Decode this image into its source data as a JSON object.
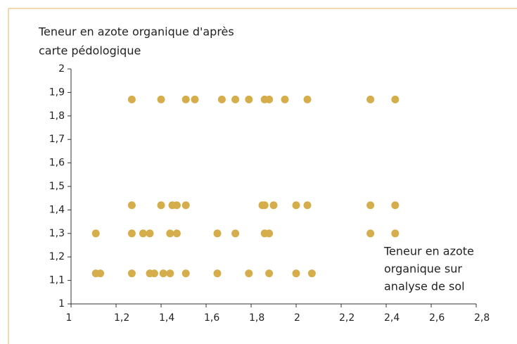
{
  "chart_data": {
    "type": "scatter",
    "ylabel": [
      "Teneur en azote organique d'après",
      "carte pédologique"
    ],
    "xlabel": [
      "Teneur en azote",
      "organique sur",
      "analyse de sol"
    ],
    "color": "#d5ad4b",
    "x": [
      1.27,
      1.4,
      1.51,
      1.55,
      1.67,
      1.73,
      1.79,
      1.86,
      1.88,
      1.95,
      2.05,
      2.33,
      2.44,
      1.27,
      1.4,
      1.45,
      1.47,
      1.51,
      1.85,
      1.86,
      1.9,
      2.0,
      2.05,
      2.33,
      2.44,
      1.11,
      1.27,
      1.32,
      1.35,
      1.44,
      1.47,
      1.65,
      1.73,
      1.86,
      1.88,
      2.33,
      2.44,
      1.11,
      1.13,
      1.27,
      1.35,
      1.37,
      1.41,
      1.44,
      1.51,
      1.65,
      1.79,
      1.88,
      2.0,
      2.07
    ],
    "values": [
      1.87,
      1.87,
      1.87,
      1.87,
      1.87,
      1.87,
      1.87,
      1.87,
      1.87,
      1.87,
      1.87,
      1.87,
      1.87,
      1.42,
      1.42,
      1.42,
      1.42,
      1.42,
      1.42,
      1.42,
      1.42,
      1.42,
      1.42,
      1.42,
      1.42,
      1.3,
      1.3,
      1.3,
      1.3,
      1.3,
      1.3,
      1.3,
      1.3,
      1.3,
      1.3,
      1.3,
      1.3,
      1.13,
      1.13,
      1.13,
      1.13,
      1.13,
      1.13,
      1.13,
      1.13,
      1.13,
      1.13,
      1.13,
      1.13,
      1.13
    ],
    "xlim": [
      1,
      2.8
    ],
    "xticks": [
      1,
      {
        "value": 1.2,
        "label": "1,2"
      },
      {
        "value": 1.4,
        "label": "1,4"
      },
      {
        "value": 1.6,
        "label": "1,6"
      },
      {
        "value": 1.8,
        "label": "1,8"
      },
      2,
      {
        "value": 2.2,
        "label": "2,2"
      },
      {
        "value": 2.4,
        "label": "2,4"
      },
      {
        "value": 2.6,
        "label": "2,6"
      },
      {
        "value": 2.8,
        "label": "2,8"
      }
    ],
    "ylim": [
      1,
      2
    ],
    "yticks": [
      1,
      {
        "value": 1.1,
        "label": "1,1"
      },
      {
        "value": 1.2,
        "label": "1,2"
      },
      {
        "value": 1.3,
        "label": "1,3"
      },
      {
        "value": 1.4,
        "label": "1,4"
      },
      {
        "value": 1.5,
        "label": "1,5"
      },
      {
        "value": 1.6,
        "label": "1,6"
      },
      {
        "value": 1.7,
        "label": "1,7"
      },
      {
        "value": 1.8,
        "label": "1,8"
      },
      {
        "value": 1.9,
        "label": "1,9"
      },
      2
    ]
  }
}
